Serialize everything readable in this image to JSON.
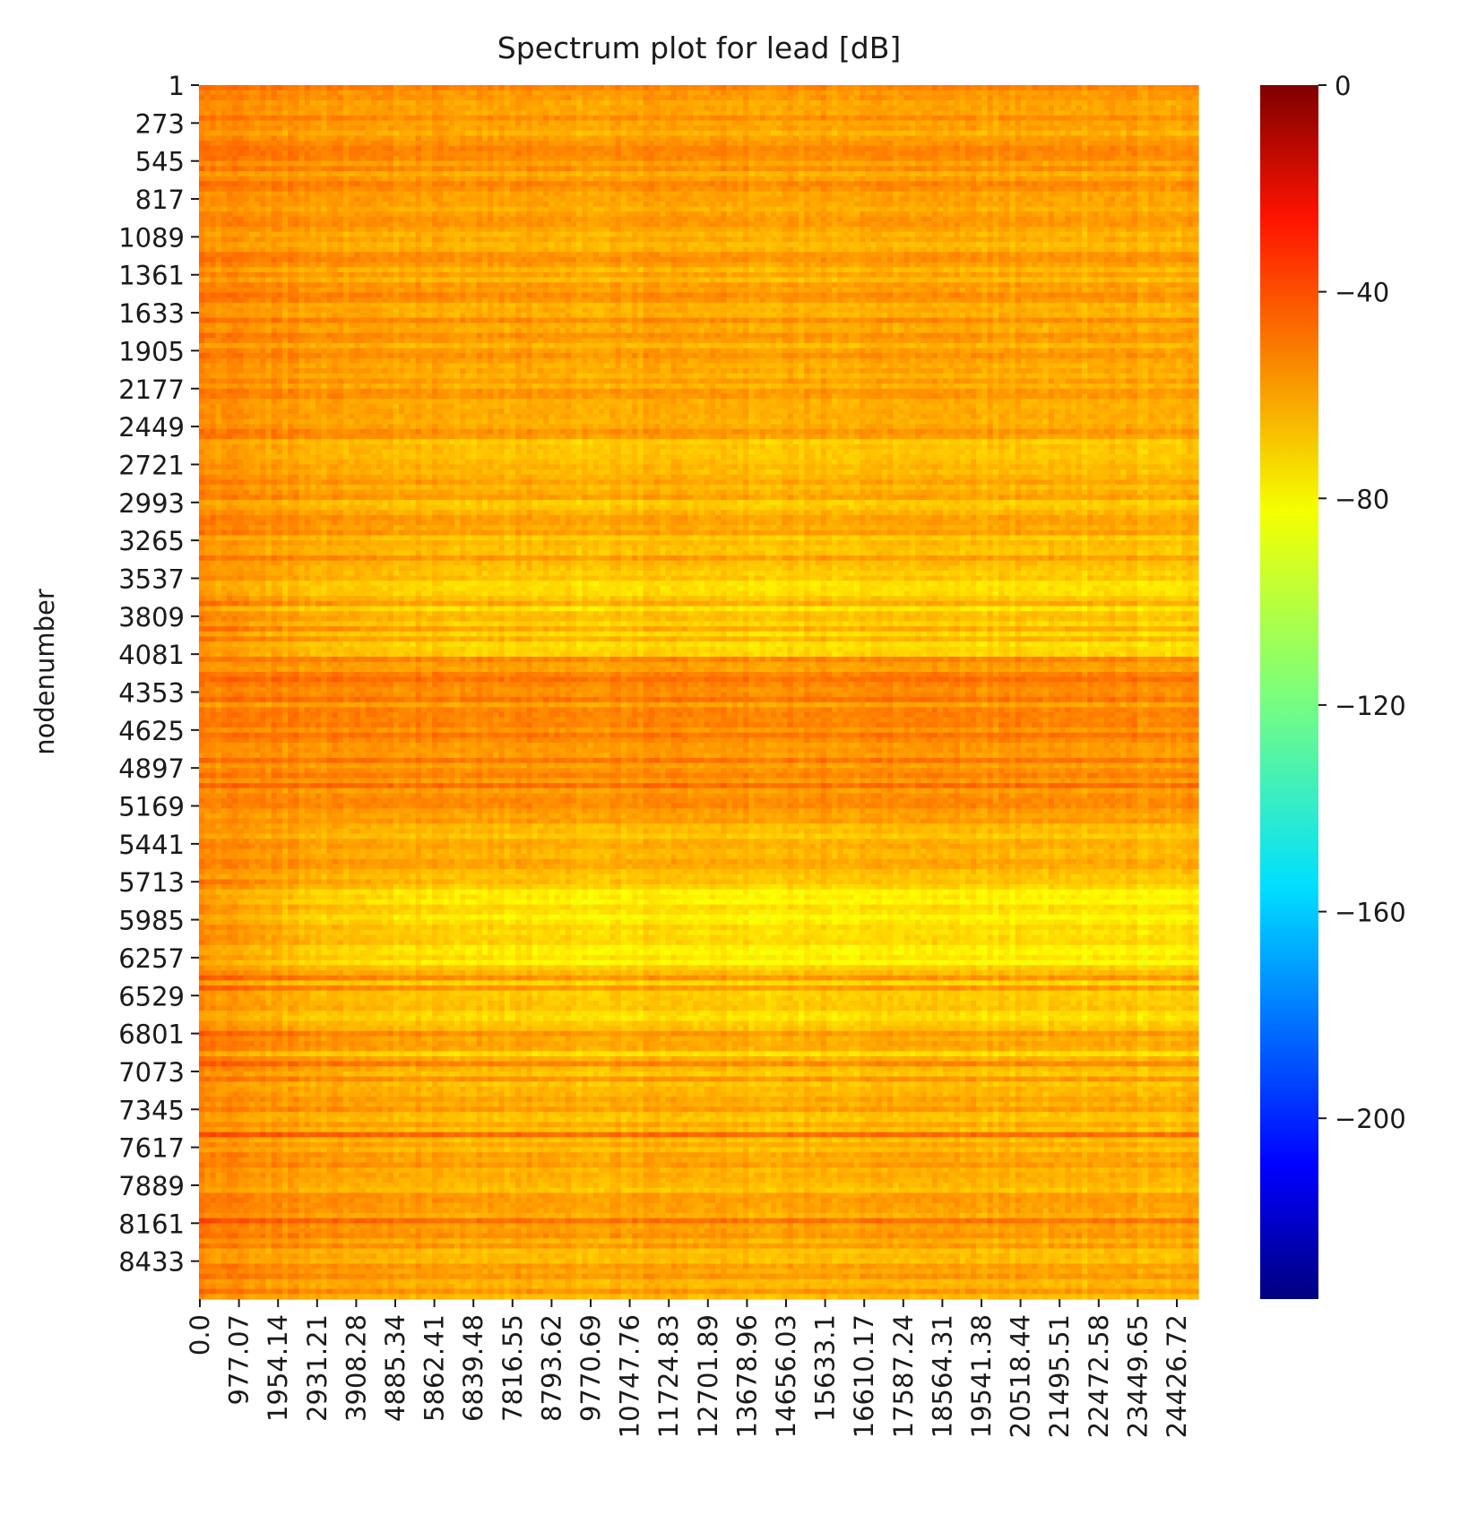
{
  "chart_data": {
    "type": "heatmap",
    "title": "Spectrum plot for lead [dB]",
    "xlabel": "",
    "ylabel": "nodenumber",
    "x_tick_labels": [
      "0.0",
      "977.07",
      "1954.14",
      "2931.21",
      "3908.28",
      "4885.34",
      "5862.41",
      "6839.48",
      "7816.55",
      "8793.62",
      "9770.69",
      "10747.76",
      "11724.83",
      "12701.89",
      "13678.96",
      "14656.03",
      "15633.1",
      "16610.17",
      "17587.24",
      "18564.31",
      "19541.38",
      "20518.44",
      "21495.51",
      "22472.58",
      "23449.65",
      "24426.72"
    ],
    "x_range": [
      0,
      25000
    ],
    "y_tick_labels": [
      "1",
      "273",
      "545",
      "817",
      "1089",
      "1361",
      "1633",
      "1905",
      "2177",
      "2449",
      "2721",
      "2993",
      "3265",
      "3537",
      "3809",
      "4081",
      "4353",
      "4625",
      "4897",
      "5169",
      "5441",
      "5713",
      "5985",
      "6257",
      "6529",
      "6801",
      "7073",
      "7345",
      "7617",
      "7889",
      "8161",
      "8433"
    ],
    "y_range": [
      1,
      8705
    ],
    "colorbar": {
      "range": [
        -235,
        0
      ],
      "ticks": [
        0,
        -40,
        -80,
        -120,
        -160,
        -200
      ],
      "tick_labels": [
        "0",
        "−40",
        "−80",
        "−120",
        "−160",
        "−200"
      ],
      "colormap": "jet"
    },
    "value_summary": {
      "typical_range_db": [
        -90,
        -45
      ],
      "bands": [
        {
          "nodes": [
            1,
            1100
          ],
          "level_db": -66
        },
        {
          "nodes": [
            1100,
            2500
          ],
          "level_db": -68
        },
        {
          "nodes": [
            2500,
            3500
          ],
          "level_db": -72
        },
        {
          "nodes": [
            3500,
            4100
          ],
          "level_db": -78
        },
        {
          "nodes": [
            4100,
            5300
          ],
          "level_db": -62
        },
        {
          "nodes": [
            5300,
            5700
          ],
          "level_db": -72
        },
        {
          "nodes": [
            5700,
            6300
          ],
          "level_db": -84
        },
        {
          "nodes": [
            6300,
            7100
          ],
          "level_db": -76
        },
        {
          "nodes": [
            7100,
            8705
          ],
          "level_db": -70
        }
      ],
      "low_frequency_level_db": -58
    }
  }
}
